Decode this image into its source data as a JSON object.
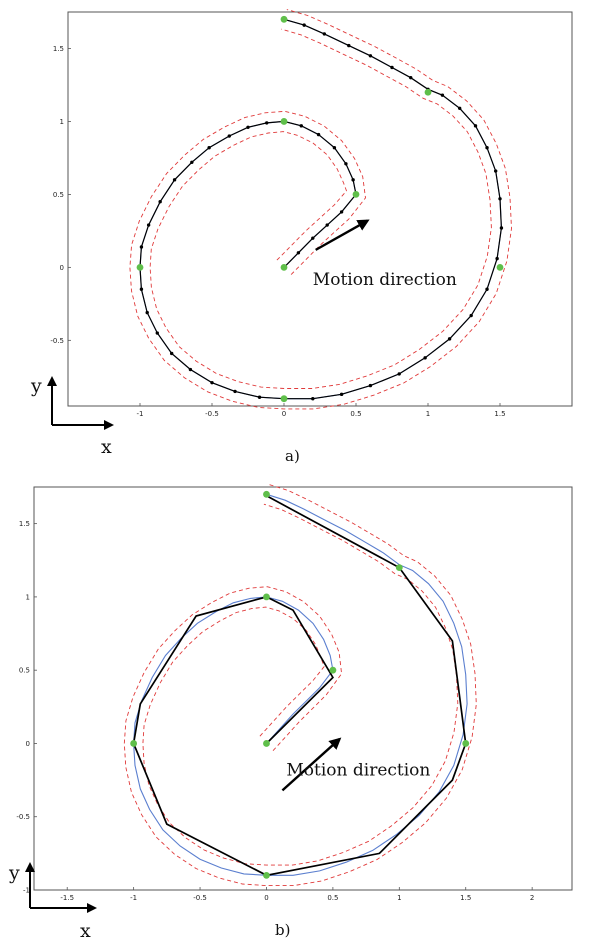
{
  "chart_data": [
    {
      "type": "line",
      "caption": "a)",
      "annotation": "Motion direction",
      "xlabel": "x",
      "ylabel": "y",
      "xlim": [
        -1.5,
        2.0
      ],
      "ylim": [
        -0.95,
        1.75
      ],
      "x_ticks": [
        -1,
        -0.5,
        0,
        0.5,
        1,
        1.5
      ],
      "y_ticks": [
        -0.5,
        0,
        0.5,
        1,
        1.5
      ],
      "x_tick_labels": [
        "-1",
        "-0.5",
        "0",
        "0.5",
        "1",
        "1.5"
      ],
      "y_tick_labels": [
        "-0.5",
        "0",
        "0.5",
        "1",
        "1.5"
      ],
      "series": [
        {
          "role": "reference path (blue)",
          "x": [
            0.0,
            0.1,
            0.2,
            0.3,
            0.4,
            0.5,
            0.48,
            0.43,
            0.35,
            0.24,
            0.12,
            0.0,
            -0.12,
            -0.25,
            -0.38,
            -0.52,
            -0.64,
            -0.76,
            -0.86,
            -0.94,
            -0.99,
            -1.0,
            -0.99,
            -0.95,
            -0.88,
            -0.78,
            -0.65,
            -0.5,
            -0.34,
            -0.17,
            0.0,
            0.2,
            0.4,
            0.6,
            0.8,
            0.98,
            1.15,
            1.3,
            1.41,
            1.48,
            1.51,
            1.5,
            1.47,
            1.41,
            1.33,
            1.22,
            1.1,
            1.0,
            0.88,
            0.75,
            0.6,
            0.45,
            0.28,
            0.14,
            0.0
          ],
          "y": [
            0.0,
            0.1,
            0.2,
            0.29,
            0.38,
            0.5,
            0.6,
            0.71,
            0.82,
            0.91,
            0.97,
            1.0,
            0.99,
            0.96,
            0.9,
            0.82,
            0.72,
            0.6,
            0.45,
            0.29,
            0.14,
            0.0,
            -0.15,
            -0.31,
            -0.45,
            -0.59,
            -0.7,
            -0.79,
            -0.85,
            -0.89,
            -0.9,
            -0.9,
            -0.87,
            -0.81,
            -0.73,
            -0.62,
            -0.49,
            -0.33,
            -0.15,
            0.06,
            0.27,
            0.47,
            0.66,
            0.82,
            0.97,
            1.09,
            1.18,
            1.22,
            1.3,
            1.37,
            1.45,
            1.52,
            1.6,
            1.66,
            1.7
          ]
        },
        {
          "role": "tolerance bound (red dashed)",
          "offset": 0.07
        },
        {
          "role": "tolerance bound (red dashed)",
          "offset": -0.07
        },
        {
          "role": "executed polyline (black, dotted vertices)",
          "x": [
            0.0,
            0.1,
            0.2,
            0.3,
            0.4,
            0.5,
            0.48,
            0.43,
            0.35,
            0.24,
            0.12,
            0.0,
            -0.12,
            -0.25,
            -0.38,
            -0.52,
            -0.64,
            -0.76,
            -0.86,
            -0.94,
            -0.99,
            -1.0,
            -0.99,
            -0.95,
            -0.88,
            -0.78,
            -0.65,
            -0.5,
            -0.34,
            -0.17,
            0.0,
            0.2,
            0.4,
            0.6,
            0.8,
            0.98,
            1.15,
            1.3,
            1.41,
            1.48,
            1.51,
            1.5,
            1.47,
            1.41,
            1.33,
            1.22,
            1.1,
            1.0,
            0.88,
            0.75,
            0.6,
            0.45,
            0.28,
            0.14,
            0.0
          ],
          "y": [
            0.0,
            0.1,
            0.2,
            0.29,
            0.38,
            0.5,
            0.6,
            0.71,
            0.82,
            0.91,
            0.97,
            1.0,
            0.99,
            0.96,
            0.9,
            0.82,
            0.72,
            0.6,
            0.45,
            0.29,
            0.14,
            0.0,
            -0.15,
            -0.31,
            -0.45,
            -0.59,
            -0.7,
            -0.79,
            -0.85,
            -0.89,
            -0.9,
            -0.9,
            -0.87,
            -0.81,
            -0.73,
            -0.62,
            -0.49,
            -0.33,
            -0.15,
            0.06,
            0.27,
            0.47,
            0.66,
            0.82,
            0.97,
            1.09,
            1.18,
            1.22,
            1.3,
            1.37,
            1.45,
            1.52,
            1.6,
            1.66,
            1.7
          ]
        },
        {
          "role": "waypoints (green)",
          "x": [
            0.0,
            0.5,
            0.0,
            -1.0,
            0.0,
            1.5,
            1.0,
            0.0
          ],
          "y": [
            0.0,
            0.5,
            1.0,
            0.0,
            -0.9,
            0.0,
            1.2,
            1.7
          ]
        }
      ],
      "arrow": {
        "from": [
          0.22,
          0.12
        ],
        "to": [
          0.58,
          0.32
        ]
      },
      "annotation_at": [
        0.2,
        -0.12
      ],
      "colors": {
        "reference": "#5b7fcf",
        "bound": "#e03a3a",
        "executed": "#000000",
        "waypoint": "#5fbf4a"
      }
    },
    {
      "type": "line",
      "caption": "b)",
      "annotation": "Motion direction",
      "xlabel": "x",
      "ylabel": "y",
      "xlim": [
        -1.75,
        2.3
      ],
      "ylim": [
        -1.0,
        1.75
      ],
      "x_ticks": [
        -1.5,
        -1,
        -0.5,
        0,
        0.5,
        1,
        1.5,
        2
      ],
      "y_ticks": [
        -1,
        -0.5,
        0,
        0.5,
        1,
        1.5
      ],
      "x_tick_labels": [
        "-1.5",
        "-1",
        "-0.5",
        "0",
        "0.5",
        "1",
        "1.5",
        "2"
      ],
      "y_tick_labels": [
        "-1",
        "-0.5",
        "0",
        "0.5",
        "1",
        "1.5"
      ],
      "series": [
        {
          "role": "reference path (blue)",
          "x": [
            0.0,
            0.1,
            0.2,
            0.3,
            0.4,
            0.5,
            0.48,
            0.43,
            0.35,
            0.24,
            0.12,
            0.0,
            -0.12,
            -0.25,
            -0.38,
            -0.52,
            -0.64,
            -0.76,
            -0.86,
            -0.94,
            -0.99,
            -1.0,
            -0.99,
            -0.95,
            -0.88,
            -0.78,
            -0.65,
            -0.5,
            -0.34,
            -0.17,
            0.0,
            0.2,
            0.4,
            0.6,
            0.8,
            0.98,
            1.15,
            1.3,
            1.41,
            1.48,
            1.51,
            1.5,
            1.47,
            1.41,
            1.33,
            1.22,
            1.1,
            1.0,
            0.88,
            0.75,
            0.6,
            0.45,
            0.28,
            0.14,
            0.0
          ],
          "y": [
            0.0,
            0.1,
            0.2,
            0.29,
            0.38,
            0.5,
            0.6,
            0.71,
            0.82,
            0.91,
            0.97,
            1.0,
            0.99,
            0.96,
            0.9,
            0.82,
            0.72,
            0.6,
            0.45,
            0.29,
            0.14,
            0.0,
            -0.15,
            -0.31,
            -0.45,
            -0.59,
            -0.7,
            -0.79,
            -0.85,
            -0.89,
            -0.9,
            -0.9,
            -0.87,
            -0.81,
            -0.73,
            -0.62,
            -0.49,
            -0.33,
            -0.15,
            0.06,
            0.27,
            0.47,
            0.66,
            0.82,
            0.97,
            1.09,
            1.18,
            1.22,
            1.3,
            1.37,
            1.45,
            1.52,
            1.6,
            1.66,
            1.7
          ]
        },
        {
          "role": "tolerance bound (red dashed)",
          "offset": 0.07
        },
        {
          "role": "tolerance bound (red dashed)",
          "offset": -0.07
        },
        {
          "role": "executed polyline (black)",
          "x": [
            0.0,
            0.5,
            0.2,
            0.0,
            -0.53,
            -0.95,
            -1.0,
            -0.75,
            0.0,
            0.85,
            1.4,
            1.5,
            1.4,
            1.0,
            0.0
          ],
          "y": [
            0.0,
            0.45,
            0.91,
            1.0,
            0.87,
            0.27,
            0.0,
            -0.55,
            -0.9,
            -0.75,
            -0.25,
            0.0,
            0.7,
            1.2,
            1.69
          ]
        },
        {
          "role": "waypoints (green)",
          "x": [
            0.0,
            0.5,
            0.0,
            -1.0,
            0.0,
            1.5,
            1.0,
            0.0
          ],
          "y": [
            0.0,
            0.5,
            1.0,
            0.0,
            -0.9,
            0.0,
            1.2,
            1.7
          ]
        }
      ],
      "arrow": {
        "from": [
          0.12,
          -0.32
        ],
        "to": [
          0.55,
          0.03
        ]
      },
      "annotation_at": [
        0.15,
        -0.22
      ],
      "colors": {
        "reference": "#5b7fcf",
        "bound": "#e03a3a",
        "executed": "#000000",
        "waypoint": "#5fbf4a"
      }
    }
  ]
}
